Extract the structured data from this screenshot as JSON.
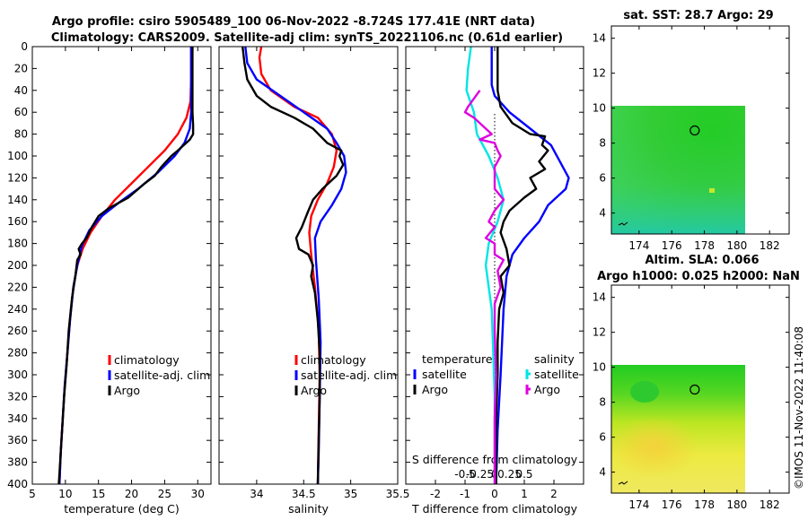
{
  "title_line1": "Argo profile: csiro 5905489_100 06-Nov-2022 -8.724S 177.41E (NRT data)",
  "title_line2": "Climatology: CARS2009. Satellite-adj clim: synTS_20221106.nc (0.61d earlier)",
  "footer": "©IMOS 11-Nov-2022 11:40:08",
  "colors": {
    "climatology": "#ff0000",
    "satellite": "#0000ff",
    "argo": "#000000",
    "sat_salinity": "#00e5e5",
    "argo_salinity": "#e000e0"
  },
  "chart_data": [
    {
      "type": "line",
      "name": "temperature",
      "xlabel": "temperature (deg C)",
      "ylabel": "",
      "xlim": [
        5,
        32
      ],
      "ylim": [
        400,
        0
      ],
      "xticks": [
        5,
        10,
        15,
        20,
        25,
        30
      ],
      "yticks": [
        0,
        20,
        40,
        60,
        80,
        100,
        120,
        140,
        160,
        180,
        200,
        220,
        240,
        260,
        280,
        300,
        320,
        340,
        360,
        380,
        400
      ],
      "legend": [
        "climatology",
        "satellite-adj. clim",
        "Argo"
      ],
      "series": [
        {
          "name": "climatology",
          "color": "#ff0000",
          "points": [
            [
              29.0,
              0
            ],
            [
              29.0,
              30
            ],
            [
              28.9,
              50
            ],
            [
              28.3,
              65
            ],
            [
              27.0,
              80
            ],
            [
              25.0,
              95
            ],
            [
              22.5,
              110
            ],
            [
              20.0,
              125
            ],
            [
              17.5,
              140
            ],
            [
              15.5,
              155
            ],
            [
              13.8,
              170
            ],
            [
              12.6,
              185
            ],
            [
              11.8,
              200
            ],
            [
              11.2,
              220
            ],
            [
              10.7,
              250
            ],
            [
              10.3,
              280
            ],
            [
              9.9,
              310
            ],
            [
              9.6,
              340
            ],
            [
              9.3,
              370
            ],
            [
              9.1,
              400
            ]
          ]
        },
        {
          "name": "satellite-adj. clim",
          "color": "#0000ff",
          "points": [
            [
              29.0,
              0
            ],
            [
              29.0,
              40
            ],
            [
              29.0,
              60
            ],
            [
              28.8,
              75
            ],
            [
              28.0,
              88
            ],
            [
              26.5,
              100
            ],
            [
              24.0,
              115
            ],
            [
              21.0,
              130
            ],
            [
              18.0,
              143
            ],
            [
              15.5,
              155
            ],
            [
              13.6,
              168
            ],
            [
              12.5,
              182
            ],
            [
              11.8,
              200
            ],
            [
              11.2,
              220
            ],
            [
              10.7,
              250
            ],
            [
              10.3,
              280
            ],
            [
              9.9,
              310
            ],
            [
              9.6,
              340
            ],
            [
              9.3,
              370
            ],
            [
              9.1,
              400
            ]
          ]
        },
        {
          "name": "Argo",
          "color": "#000000",
          "points": [
            [
              29.2,
              0
            ],
            [
              29.2,
              40
            ],
            [
              29.2,
              60
            ],
            [
              29.3,
              72
            ],
            [
              29.3,
              80
            ],
            [
              28.8,
              85
            ],
            [
              27.0,
              95
            ],
            [
              26.0,
              100
            ],
            [
              24.5,
              110
            ],
            [
              23.5,
              118
            ],
            [
              22.0,
              125
            ],
            [
              19.5,
              138
            ],
            [
              16.5,
              148
            ],
            [
              15.0,
              155
            ],
            [
              14.0,
              165
            ],
            [
              13.2,
              175
            ],
            [
              12.5,
              180
            ],
            [
              12.0,
              185
            ],
            [
              12.3,
              190
            ],
            [
              11.8,
              195
            ],
            [
              11.5,
              210
            ],
            [
              11.0,
              230
            ],
            [
              10.5,
              260
            ],
            [
              10.2,
              290
            ],
            [
              9.8,
              320
            ],
            [
              9.5,
              350
            ],
            [
              9.2,
              380
            ],
            [
              9.0,
              400
            ]
          ]
        }
      ]
    },
    {
      "type": "line",
      "name": "salinity",
      "xlabel": "salinity",
      "ylabel": "",
      "xlim": [
        33.6,
        35.5
      ],
      "ylim": [
        400,
        0
      ],
      "xticks": [
        34,
        34.5,
        35,
        35.5
      ],
      "legend": [
        "climatology",
        "satellite-adj. clim",
        "Argo"
      ],
      "series": [
        {
          "name": "climatology",
          "color": "#ff0000",
          "points": [
            [
              34.05,
              0
            ],
            [
              34.03,
              10
            ],
            [
              34.05,
              25
            ],
            [
              34.15,
              40
            ],
            [
              34.4,
              55
            ],
            [
              34.65,
              65
            ],
            [
              34.8,
              80
            ],
            [
              34.85,
              95
            ],
            [
              34.82,
              110
            ],
            [
              34.75,
              125
            ],
            [
              34.65,
              140
            ],
            [
              34.58,
              155
            ],
            [
              34.56,
              170
            ],
            [
              34.58,
              190
            ],
            [
              34.62,
              220
            ],
            [
              34.66,
              260
            ],
            [
              34.67,
              300
            ],
            [
              34.66,
              350
            ],
            [
              34.65,
              400
            ]
          ]
        },
        {
          "name": "satellite-adj. clim",
          "color": "#0000ff",
          "points": [
            [
              33.88,
              0
            ],
            [
              33.9,
              15
            ],
            [
              34.0,
              30
            ],
            [
              34.25,
              45
            ],
            [
              34.5,
              60
            ],
            [
              34.75,
              75
            ],
            [
              34.85,
              88
            ],
            [
              34.93,
              100
            ],
            [
              34.95,
              115
            ],
            [
              34.9,
              130
            ],
            [
              34.8,
              145
            ],
            [
              34.68,
              160
            ],
            [
              34.62,
              175
            ],
            [
              34.63,
              195
            ],
            [
              34.66,
              230
            ],
            [
              34.68,
              270
            ],
            [
              34.67,
              320
            ],
            [
              34.66,
              370
            ],
            [
              34.65,
              400
            ]
          ]
        },
        {
          "name": "Argo",
          "color": "#000000",
          "points": [
            [
              33.85,
              0
            ],
            [
              33.87,
              15
            ],
            [
              33.9,
              30
            ],
            [
              34.0,
              45
            ],
            [
              34.15,
              55
            ],
            [
              34.4,
              65
            ],
            [
              34.6,
              75
            ],
            [
              34.75,
              88
            ],
            [
              34.9,
              95
            ],
            [
              34.88,
              100
            ],
            [
              34.92,
              108
            ],
            [
              34.85,
              118
            ],
            [
              34.7,
              130
            ],
            [
              34.6,
              140
            ],
            [
              34.55,
              150
            ],
            [
              34.48,
              165
            ],
            [
              34.42,
              175
            ],
            [
              34.45,
              185
            ],
            [
              34.55,
              190
            ],
            [
              34.6,
              200
            ],
            [
              34.58,
              210
            ],
            [
              34.62,
              225
            ],
            [
              34.65,
              250
            ],
            [
              34.67,
              280
            ],
            [
              34.67,
              320
            ],
            [
              34.66,
              360
            ],
            [
              34.65,
              400
            ]
          ]
        }
      ]
    },
    {
      "type": "line",
      "name": "difference",
      "xlabel": "T difference from climatology",
      "xlabel2": "S difference from climatology",
      "xlim": [
        -3,
        3
      ],
      "ylim": [
        400,
        0
      ],
      "xticks": [
        -2,
        -1,
        0,
        1,
        2
      ],
      "x2ticks": [
        {
          "label": "-0.5",
          "v": -1
        },
        {
          "label": "-0.25",
          "v": -0.5
        },
        {
          "label": "0",
          "v": 0
        },
        {
          "label": "0.25",
          "v": 0.5
        },
        {
          "label": "0.5",
          "v": 1
        }
      ],
      "legend_temperature": {
        "title": "temperature",
        "items": [
          "satellite",
          "Argo"
        ]
      },
      "legend_salinity": {
        "title": "salinity",
        "items": [
          "satellite",
          "Argo"
        ]
      },
      "series": [
        {
          "name": "T satellite",
          "color": "#0000ff",
          "points": [
            [
              -0.1,
              0
            ],
            [
              -0.1,
              20
            ],
            [
              -0.1,
              35
            ],
            [
              0.0,
              45
            ],
            [
              0.5,
              60
            ],
            [
              1.2,
              75
            ],
            [
              1.9,
              90
            ],
            [
              2.2,
              105
            ],
            [
              2.5,
              120
            ],
            [
              2.4,
              130
            ],
            [
              1.8,
              145
            ],
            [
              1.5,
              160
            ],
            [
              1.0,
              175
            ],
            [
              0.6,
              190
            ],
            [
              0.4,
              210
            ],
            [
              0.3,
              240
            ],
            [
              0.2,
              300
            ],
            [
              0.1,
              350
            ],
            [
              0.05,
              400
            ]
          ]
        },
        {
          "name": "T Argo",
          "color": "#000000",
          "points": [
            [
              0.1,
              0
            ],
            [
              0.1,
              20
            ],
            [
              0.1,
              40
            ],
            [
              0.2,
              55
            ],
            [
              0.6,
              70
            ],
            [
              1.2,
              80
            ],
            [
              1.7,
              82
            ],
            [
              1.6,
              90
            ],
            [
              1.8,
              95
            ],
            [
              1.5,
              105
            ],
            [
              1.7,
              112
            ],
            [
              1.2,
              120
            ],
            [
              1.4,
              130
            ],
            [
              1.0,
              138
            ],
            [
              0.5,
              150
            ],
            [
              0.3,
              160
            ],
            [
              0.2,
              170
            ],
            [
              0.4,
              185
            ],
            [
              0.5,
              200
            ],
            [
              0.2,
              210
            ],
            [
              0.3,
              225
            ],
            [
              0.15,
              240
            ],
            [
              0.1,
              270
            ],
            [
              0.1,
              300
            ],
            [
              0.05,
              340
            ],
            [
              0.05,
              400
            ]
          ]
        },
        {
          "name": "S satellite",
          "color": "#00e5e5",
          "points": [
            [
              -0.8,
              0
            ],
            [
              -0.9,
              20
            ],
            [
              -0.95,
              40
            ],
            [
              -0.7,
              60
            ],
            [
              -0.6,
              80
            ],
            [
              -0.2,
              100
            ],
            [
              0.1,
              120
            ],
            [
              0.3,
              140
            ],
            [
              0.1,
              160
            ],
            [
              -0.2,
              180
            ],
            [
              -0.3,
              200
            ],
            [
              -0.1,
              240
            ],
            [
              -0.05,
              280
            ],
            [
              0.0,
              320
            ],
            [
              0.0,
              360
            ],
            [
              0.0,
              400
            ]
          ]
        },
        {
          "name": "S Argo",
          "color": "#e000e0",
          "points": [
            [
              -0.5,
              40
            ],
            [
              -0.9,
              55
            ],
            [
              -1.0,
              60
            ],
            [
              -0.7,
              65
            ],
            [
              -0.3,
              75
            ],
            [
              -0.1,
              80
            ],
            [
              -0.5,
              85
            ],
            [
              0.0,
              88
            ],
            [
              0.1,
              95
            ],
            [
              0.2,
              100
            ],
            [
              0.0,
              110
            ],
            [
              0.0,
              130
            ],
            [
              0.3,
              140
            ],
            [
              0.0,
              150
            ],
            [
              -0.2,
              160
            ],
            [
              0.0,
              165
            ],
            [
              -0.3,
              175
            ],
            [
              0.0,
              180
            ],
            [
              0.0,
              190
            ],
            [
              0.3,
              195
            ],
            [
              0.1,
              205
            ],
            [
              0.2,
              220
            ],
            [
              0.0,
              235
            ],
            [
              0.0,
              260
            ],
            [
              0.05,
              300
            ],
            [
              0.0,
              340
            ],
            [
              0.0,
              400
            ]
          ]
        }
      ]
    },
    {
      "type": "heatmap",
      "name": "sst_map",
      "title": "sat. SST: 28.7 Argo: 29",
      "xlim": [
        172.3,
        183.2
      ],
      "ylim": [
        2.8,
        14.7
      ],
      "xticks": [
        174,
        176,
        178,
        180,
        182
      ],
      "yticks": [
        4,
        6,
        8,
        10,
        12,
        14
      ],
      "data_extent": {
        "lon": [
          172.3,
          180.2
        ],
        "lat": [
          2.8,
          10.1
        ]
      },
      "float_position": {
        "lon": 177.41,
        "lat": 8.724
      }
    },
    {
      "type": "heatmap",
      "name": "sla_map",
      "title_line1": "Altim. SLA: 0.066",
      "title_line2": "Argo h1000: 0.025 h2000: NaN",
      "xlim": [
        172.3,
        183.2
      ],
      "ylim": [
        2.8,
        14.7
      ],
      "xticks": [
        174,
        176,
        178,
        180,
        182
      ],
      "yticks": [
        4,
        6,
        8,
        10,
        12,
        14
      ],
      "data_extent": {
        "lon": [
          172.3,
          180.2
        ],
        "lat": [
          2.8,
          10.1
        ]
      },
      "float_position": {
        "lon": 177.41,
        "lat": 8.724
      }
    }
  ]
}
